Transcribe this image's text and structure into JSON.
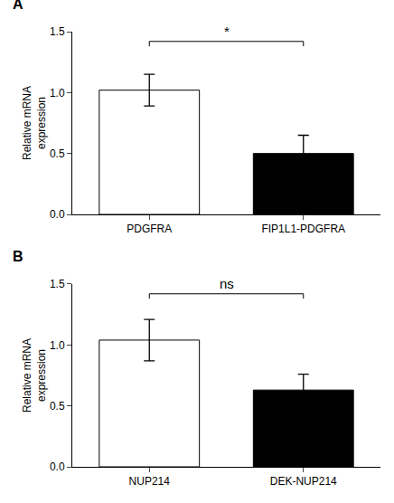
{
  "chart_data": [
    {
      "type": "bar",
      "title": "A",
      "categories": [
        "PDGFRA",
        "FIP1L1-PDGFRA"
      ],
      "values": [
        1.02,
        0.5
      ],
      "errors": [
        0.13,
        0.15
      ],
      "colors": [
        "#ffffff",
        "#000000"
      ],
      "ylabel": "Relative mRNA\nexpression",
      "ylim": [
        0,
        1.5
      ],
      "yticks": [
        {
          "value": 0.0,
          "label": "0.0"
        },
        0.5,
        {
          "value": 1.0,
          "label": "1.0"
        },
        1.5
      ],
      "grid": false,
      "annotations": [
        {
          "text": "*",
          "from": "PDGFRA",
          "to": "FIP1L1-PDGFRA",
          "y": 1.42,
          "drop": 0.04
        }
      ]
    },
    {
      "type": "bar",
      "title": "B",
      "categories": [
        "NUP214",
        "DEK-NUP214"
      ],
      "values": [
        1.04,
        0.63
      ],
      "errors": [
        0.17,
        0.13
      ],
      "colors": [
        "#ffffff",
        "#000000"
      ],
      "ylabel": "Relative mRNA\nexpression",
      "ylim": [
        0,
        1.5
      ],
      "yticks": [
        {
          "value": 0.0,
          "label": "0.0"
        },
        0.5,
        {
          "value": 1.0,
          "label": "1.0"
        },
        1.5
      ],
      "grid": false,
      "annotations": [
        {
          "text": "ns",
          "from": "NUP214",
          "to": "DEK-NUP214",
          "y": 1.42,
          "drop": 0.04
        }
      ]
    }
  ]
}
